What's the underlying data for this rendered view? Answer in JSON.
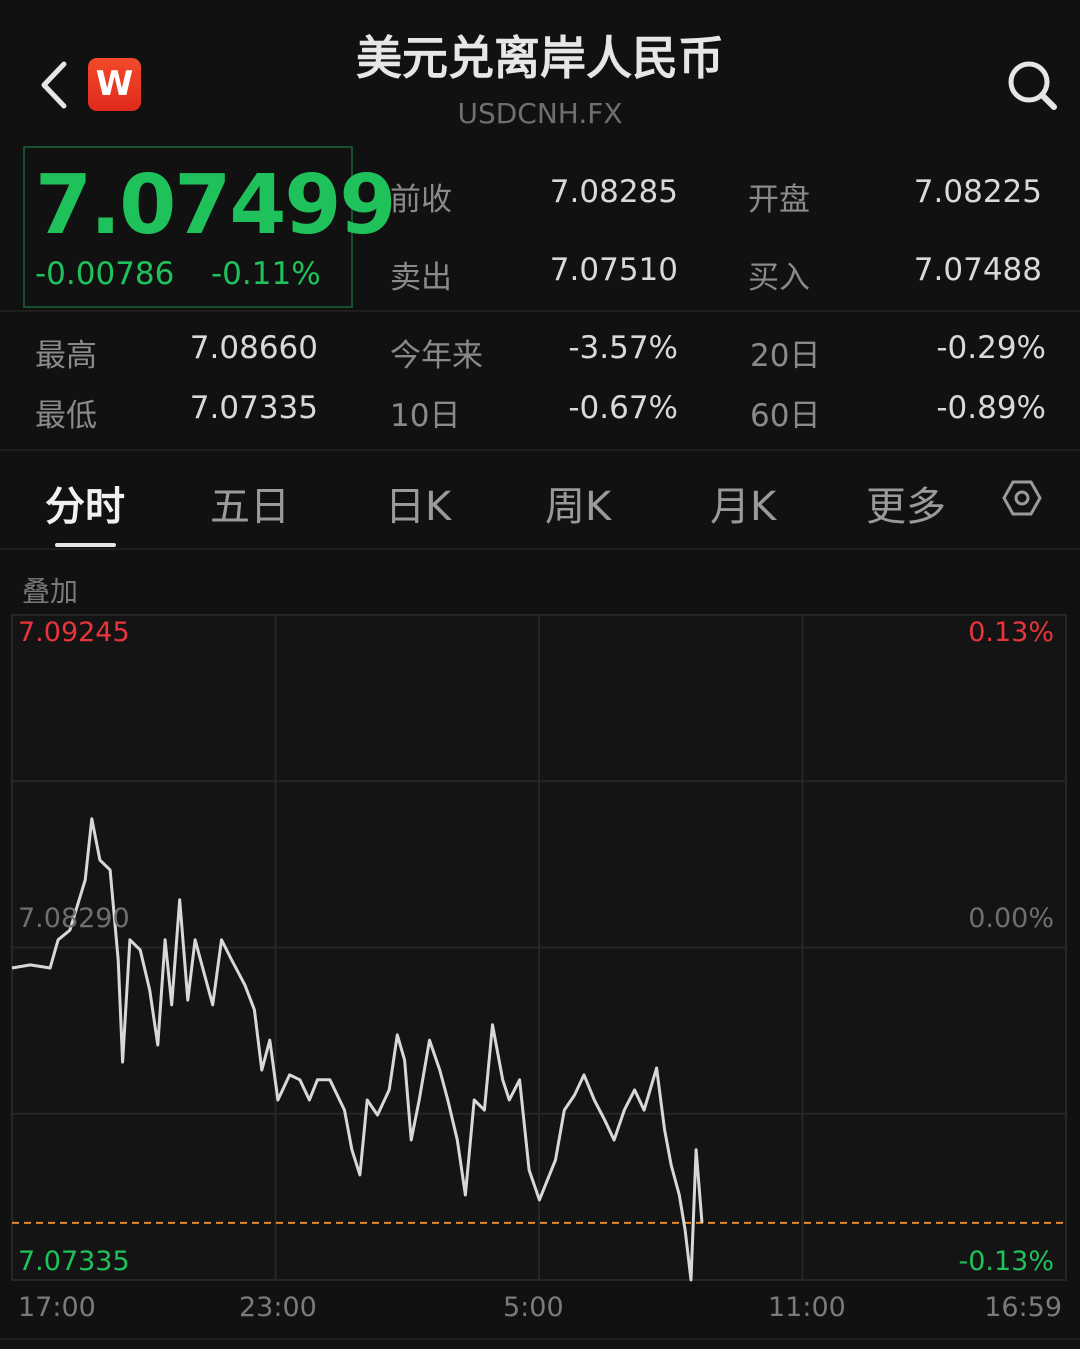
{
  "header": {
    "title": "美元兑离岸人民币",
    "symbol": "USDCNH.FX",
    "logo_letter": "W",
    "back_icon": "chevron-left-icon",
    "search_icon": "search-icon"
  },
  "quote": {
    "price": "7.07499",
    "change": "-0.00786",
    "change_pct": "-0.11%",
    "fields": [
      {
        "label": "前收",
        "value": "7.08285"
      },
      {
        "label": "开盘",
        "value": "7.08225"
      },
      {
        "label": "卖出",
        "value": "7.07510"
      },
      {
        "label": "买入",
        "value": "7.07488"
      }
    ]
  },
  "stats": [
    {
      "label": "最高",
      "value": "7.08660"
    },
    {
      "label": "今年来",
      "value": "-3.57%"
    },
    {
      "label": "20日",
      "value": "-0.29%"
    },
    {
      "label": "最低",
      "value": "7.07335"
    },
    {
      "label": "10日",
      "value": "-0.67%"
    },
    {
      "label": "60日",
      "value": "-0.89%"
    }
  ],
  "tabs": [
    {
      "label": "分时",
      "active": true
    },
    {
      "label": "五日"
    },
    {
      "label": "日K"
    },
    {
      "label": "周K"
    },
    {
      "label": "月K"
    },
    {
      "label": "更多"
    }
  ],
  "overlay_label": "叠加",
  "colors": {
    "up": "#e8343a",
    "down": "#1fc25a",
    "line": "#d8d8d8",
    "current_line": "#e08a2c",
    "background": "#111111"
  },
  "chart_data": {
    "type": "line",
    "y_top": "7.09245",
    "y_mid": "7.08290",
    "y_bottom": "7.07335",
    "pct_top": "0.13%",
    "pct_mid": "0.00%",
    "pct_bottom": "-0.13%",
    "ylim": [
      7.07335,
      7.09245
    ],
    "x_ticks": [
      "17:00",
      "23:00",
      "5:00",
      "11:00",
      "16:59"
    ],
    "current_price": 7.07499,
    "grid": true,
    "points": [
      [
        "17:00",
        7.08231
      ],
      [
        "17:25",
        7.0824
      ],
      [
        "17:52",
        7.08231
      ],
      [
        "18:03",
        7.08312
      ],
      [
        "18:19",
        7.0834
      ],
      [
        "18:40",
        7.08484
      ],
      [
        "18:49",
        7.0866
      ],
      [
        "19:00",
        7.08541
      ],
      [
        "19:14",
        7.08513
      ],
      [
        "19:25",
        7.08254
      ],
      [
        "19:31",
        7.07961
      ],
      [
        "19:41",
        7.08312
      ],
      [
        "19:55",
        7.08283
      ],
      [
        "20:08",
        7.08168
      ],
      [
        "20:19",
        7.0801
      ],
      [
        "20:29",
        7.08312
      ],
      [
        "20:38",
        7.08125
      ],
      [
        "20:49",
        7.08427
      ],
      [
        "21:00",
        7.08139
      ],
      [
        "21:10",
        7.08312
      ],
      [
        "21:23",
        7.08211
      ],
      [
        "21:34",
        7.08125
      ],
      [
        "21:46",
        7.08312
      ],
      [
        "22:00",
        7.08254
      ],
      [
        "22:18",
        7.08182
      ],
      [
        "22:31",
        7.08111
      ],
      [
        "22:41",
        7.07938
      ],
      [
        "22:52",
        7.08024
      ],
      [
        "23:03",
        7.07852
      ],
      [
        "23:19",
        7.07924
      ],
      [
        "23:33",
        7.0791
      ],
      [
        "23:46",
        7.07852
      ],
      [
        "23:57",
        7.0791
      ],
      [
        "00:14",
        7.0791
      ],
      [
        "00:34",
        7.07823
      ],
      [
        "00:44",
        7.07709
      ],
      [
        "00:55",
        7.07637
      ],
      [
        "01:05",
        7.07852
      ],
      [
        "01:19",
        7.07809
      ],
      [
        "01:35",
        7.07881
      ],
      [
        "01:46",
        7.08039
      ],
      [
        "01:56",
        7.07967
      ],
      [
        "02:05",
        7.07737
      ],
      [
        "02:16",
        7.07852
      ],
      [
        "02:30",
        7.08024
      ],
      [
        "02:44",
        7.07938
      ],
      [
        "02:55",
        7.07852
      ],
      [
        "03:08",
        7.07737
      ],
      [
        "03:19",
        7.07579
      ],
      [
        "03:31",
        7.07852
      ],
      [
        "03:45",
        7.07823
      ],
      [
        "03:56",
        7.08068
      ],
      [
        "04:10",
        7.0791
      ],
      [
        "04:19",
        7.07852
      ],
      [
        "04:33",
        7.0791
      ],
      [
        "04:46",
        7.07651
      ],
      [
        "05:00",
        7.07565
      ],
      [
        "05:11",
        7.07622
      ],
      [
        "05:22",
        7.0768
      ],
      [
        "05:34",
        7.07823
      ],
      [
        "05:48",
        7.07866
      ],
      [
        "06:01",
        7.07924
      ],
      [
        "06:15",
        7.07852
      ],
      [
        "06:29",
        7.07795
      ],
      [
        "06:42",
        7.07737
      ],
      [
        "06:56",
        7.07823
      ],
      [
        "07:10",
        7.07881
      ],
      [
        "07:23",
        7.07823
      ],
      [
        "07:40",
        7.07944
      ],
      [
        "07:51",
        7.07766
      ],
      [
        "08:00",
        7.07665
      ],
      [
        "08:11",
        7.07579
      ],
      [
        "08:19",
        7.07479
      ],
      [
        "08:27",
        7.07335
      ],
      [
        "08:34",
        7.07709
      ],
      [
        "08:42",
        7.07499
      ]
    ]
  }
}
